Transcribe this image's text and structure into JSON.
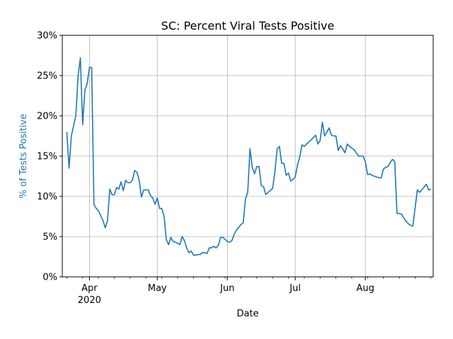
{
  "chart_data": {
    "type": "line",
    "title": "SC: Percent Viral Tests Positive",
    "xlabel": "Date",
    "ylabel": "% of Tests Positive",
    "ylim": [
      0,
      30
    ],
    "xlim": [
      "2020-03-20",
      "2020-08-31"
    ],
    "grid": true,
    "y_ticks": [
      0,
      5,
      10,
      15,
      20,
      25,
      30
    ],
    "y_tick_labels": [
      "0%",
      "5%",
      "10%",
      "15%",
      "20%",
      "25%",
      "30%"
    ],
    "x_ticks": [
      {
        "date": "2020-04-01",
        "label": "Apr",
        "sublabel": "2020"
      },
      {
        "date": "2020-05-01",
        "label": "May"
      },
      {
        "date": "2020-06-01",
        "label": "Jun"
      },
      {
        "date": "2020-07-01",
        "label": "Jul"
      },
      {
        "date": "2020-08-01",
        "label": "Aug"
      }
    ],
    "colors": {
      "line": "#1f77b4",
      "ylabel": "#1f77b4"
    },
    "series": [
      {
        "x": [
          "2020-03-22",
          "2020-03-23",
          "2020-03-24",
          "2020-03-26",
          "2020-03-27",
          "2020-03-28",
          "2020-03-29",
          "2020-03-30",
          "2020-03-31",
          "2020-04-01",
          "2020-04-02",
          "2020-04-03",
          "2020-04-04",
          "2020-04-05",
          "2020-04-07",
          "2020-04-08",
          "2020-04-09",
          "2020-04-10",
          "2020-04-11",
          "2020-04-12",
          "2020-04-13",
          "2020-04-14",
          "2020-04-15",
          "2020-04-16",
          "2020-04-17",
          "2020-04-18",
          "2020-04-19",
          "2020-04-20",
          "2020-04-21",
          "2020-04-22",
          "2020-04-23",
          "2020-04-24",
          "2020-04-25",
          "2020-04-26",
          "2020-04-27",
          "2020-04-28",
          "2020-04-29",
          "2020-04-30",
          "2020-05-01",
          "2020-05-02",
          "2020-05-03",
          "2020-05-04",
          "2020-05-05",
          "2020-05-06",
          "2020-05-07",
          "2020-05-08",
          "2020-05-10",
          "2020-05-11",
          "2020-05-12",
          "2020-05-13",
          "2020-05-14",
          "2020-05-15",
          "2020-05-16",
          "2020-05-17",
          "2020-05-18",
          "2020-05-20",
          "2020-05-21",
          "2020-05-22",
          "2020-05-23",
          "2020-05-24",
          "2020-05-25",
          "2020-05-26",
          "2020-05-27",
          "2020-05-28",
          "2020-05-29",
          "2020-05-30",
          "2020-06-01",
          "2020-06-02",
          "2020-06-03",
          "2020-06-04",
          "2020-06-05",
          "2020-06-07",
          "2020-06-08",
          "2020-06-09",
          "2020-06-10",
          "2020-06-11",
          "2020-06-12",
          "2020-06-13",
          "2020-06-14",
          "2020-06-15",
          "2020-06-16",
          "2020-06-17",
          "2020-06-18",
          "2020-06-19",
          "2020-06-21",
          "2020-06-22",
          "2020-06-23",
          "2020-06-24",
          "2020-06-25",
          "2020-06-26",
          "2020-06-27",
          "2020-06-28",
          "2020-06-29",
          "2020-06-30",
          "2020-07-01",
          "2020-07-02",
          "2020-07-03",
          "2020-07-04",
          "2020-07-05",
          "2020-07-06",
          "2020-07-08",
          "2020-07-09",
          "2020-07-10",
          "2020-07-11",
          "2020-07-12",
          "2020-07-13",
          "2020-07-14",
          "2020-07-15",
          "2020-07-16",
          "2020-07-17",
          "2020-07-18",
          "2020-07-19",
          "2020-07-20",
          "2020-07-21",
          "2020-07-22",
          "2020-07-23",
          "2020-07-24",
          "2020-07-25",
          "2020-07-27",
          "2020-07-28",
          "2020-07-29",
          "2020-07-30",
          "2020-07-31",
          "2020-08-01",
          "2020-08-02",
          "2020-08-03",
          "2020-08-04",
          "2020-08-06",
          "2020-08-07",
          "2020-08-08",
          "2020-08-09",
          "2020-08-10",
          "2020-08-11",
          "2020-08-12",
          "2020-08-13",
          "2020-08-14",
          "2020-08-15",
          "2020-08-17",
          "2020-08-18",
          "2020-08-19",
          "2020-08-20",
          "2020-08-21",
          "2020-08-22",
          "2020-08-24",
          "2020-08-25",
          "2020-08-26",
          "2020-08-28",
          "2020-08-29",
          "2020-08-30"
        ],
        "values": [
          18.0,
          13.5,
          17.5,
          20.0,
          25.0,
          27.2,
          18.9,
          23.2,
          24.0,
          26.0,
          26.0,
          9.0,
          8.5,
          8.2,
          7.0,
          6.1,
          7.0,
          10.9,
          10.2,
          10.2,
          11.1,
          10.9,
          11.8,
          10.7,
          12.0,
          11.7,
          11.7,
          12.0,
          13.2,
          13.0,
          12.0,
          9.9,
          10.8,
          10.8,
          10.8,
          10.1,
          9.8,
          9.0,
          9.8,
          8.5,
          8.5,
          7.5,
          4.6,
          4.0,
          4.9,
          4.4,
          4.2,
          4.0,
          5.0,
          4.5,
          3.6,
          3.0,
          3.2,
          2.7,
          2.7,
          2.8,
          3.0,
          3.0,
          2.9,
          3.6,
          3.6,
          3.8,
          3.6,
          3.9,
          4.9,
          4.9,
          4.4,
          4.3,
          4.5,
          5.3,
          5.8,
          6.5,
          6.7,
          9.7,
          10.5,
          15.9,
          13.6,
          12.8,
          13.7,
          13.7,
          11.3,
          11.2,
          10.2,
          10.5,
          11.0,
          13.0,
          15.9,
          16.2,
          14.1,
          14.1,
          12.6,
          12.9,
          11.9,
          12.1,
          12.4,
          13.9,
          14.9,
          16.4,
          16.2,
          16.5,
          17.0,
          17.3,
          17.6,
          16.5,
          16.9,
          19.2,
          17.5,
          18.0,
          18.5,
          17.6,
          17.5,
          17.5,
          15.7,
          16.3,
          15.9,
          15.4,
          16.5,
          16.2,
          15.8,
          15.4,
          15.0,
          15.0,
          15.0,
          14.3,
          12.7,
          12.8,
          12.6,
          12.4,
          12.3,
          12.3,
          13.4,
          13.6,
          13.7,
          14.2,
          14.6,
          14.3,
          7.9,
          7.8,
          7.3,
          6.9,
          6.6,
          6.4,
          6.3,
          10.8,
          10.5,
          10.8,
          11.5,
          10.8,
          10.9
        ]
      }
    ]
  }
}
